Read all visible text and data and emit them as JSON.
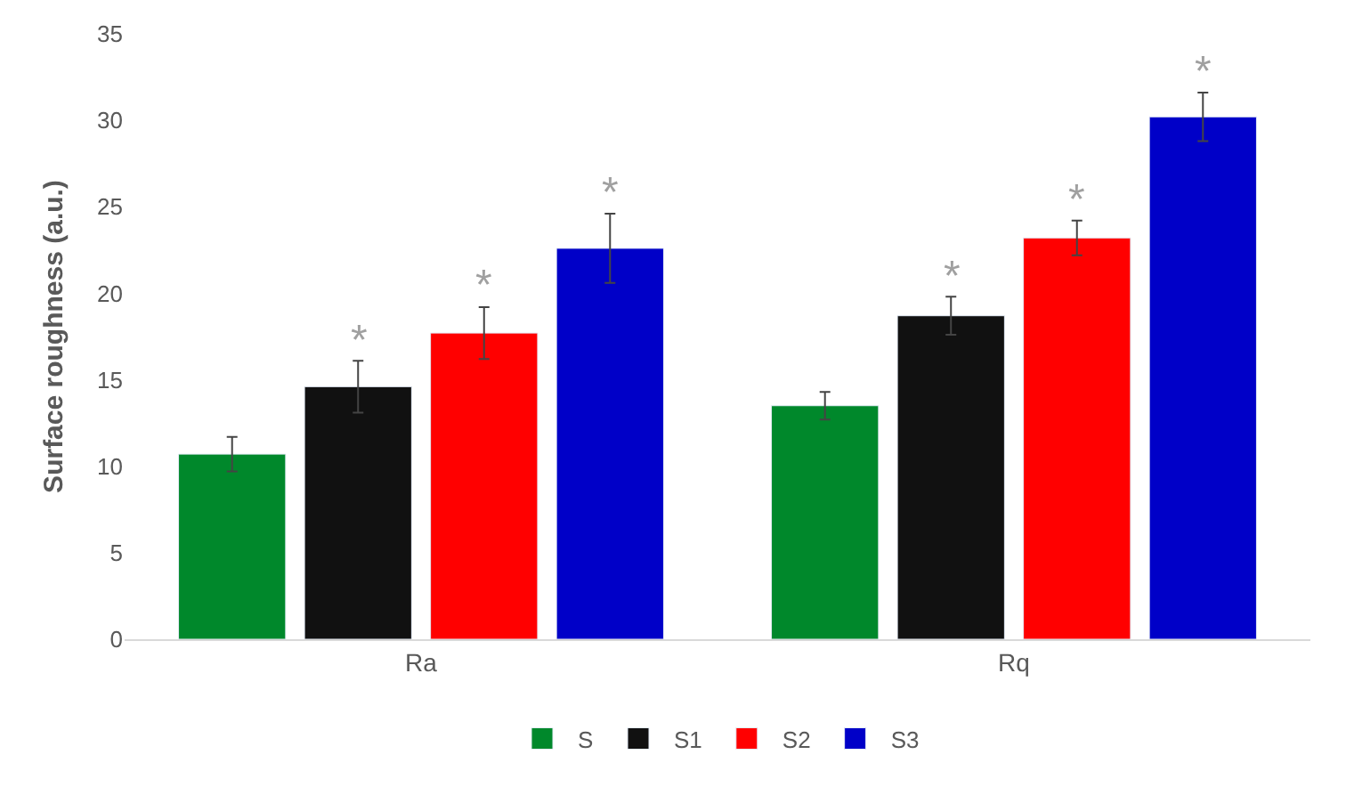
{
  "chart_data": {
    "type": "bar",
    "ylabel": "Surface roughness (a.u.)",
    "categories": [
      "Ra",
      "Rq"
    ],
    "series": [
      {
        "name": "S",
        "color": "#00882b",
        "values": [
          10.7,
          13.5
        ],
        "errors": [
          1.0,
          0.8
        ]
      },
      {
        "name": "S1",
        "color": "#111111",
        "values": [
          14.6,
          18.7
        ],
        "errors": [
          1.5,
          1.1
        ],
        "value_labels": [
          "*",
          "*"
        ]
      },
      {
        "name": "S2",
        "color": "#ff0000",
        "values": [
          17.7,
          23.2
        ],
        "errors": [
          1.5,
          1.0
        ],
        "value_labels": [
          "*",
          "*"
        ]
      },
      {
        "name": "S3",
        "color": "#0000c8",
        "values": [
          22.6,
          30.2
        ],
        "errors": [
          2.0,
          1.4
        ],
        "value_labels": [
          "*",
          "*"
        ]
      }
    ],
    "ylim": [
      0,
      35
    ],
    "yticks": [
      0,
      5,
      10,
      15,
      20,
      25,
      30,
      35
    ],
    "legend": "bottom"
  }
}
